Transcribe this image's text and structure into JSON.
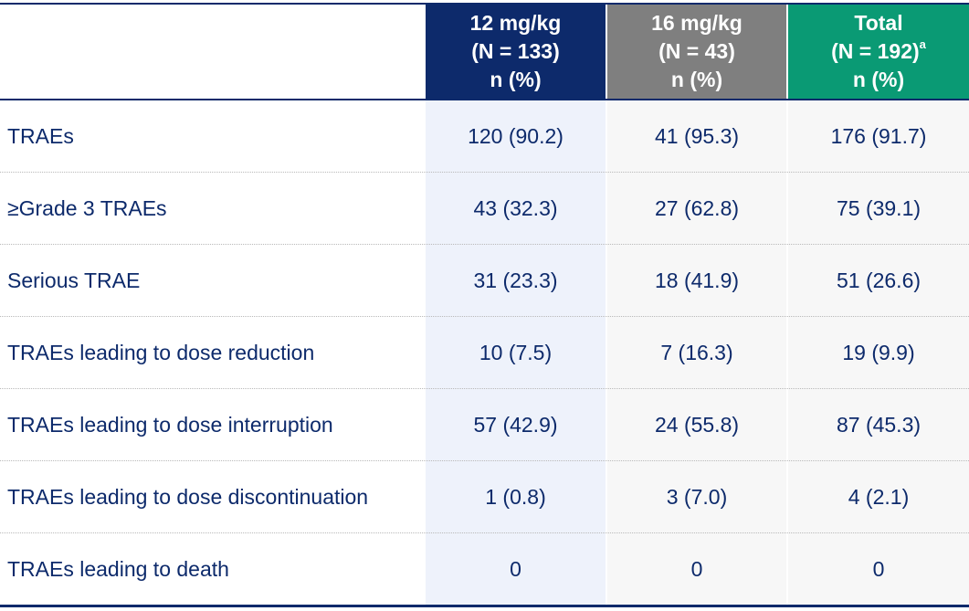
{
  "columns": [
    {
      "dose": "12 mg/kg",
      "n": "(N = 133)",
      "unit": "n (%)",
      "color": "#0d2a6b"
    },
    {
      "dose": "16 mg/kg",
      "n": "(N = 43)",
      "unit": "n (%)",
      "color": "#7f7f7f"
    },
    {
      "dose": "Total",
      "n": "(N = 192)",
      "footnote": "a",
      "unit": "n (%)",
      "color": "#0a9a74"
    }
  ],
  "rows": [
    {
      "label": "TRAEs",
      "v12": "120 (90.2)",
      "v16": "41 (95.3)",
      "total": "176 (91.7)"
    },
    {
      "label": "≥Grade 3 TRAEs",
      "v12": "43 (32.3)",
      "v16": "27 (62.8)",
      "total": "75 (39.1)"
    },
    {
      "label": "Serious TRAE",
      "v12": "31 (23.3)",
      "v16": "18 (41.9)",
      "total": "51 (26.6)"
    },
    {
      "label": "TRAEs leading to dose reduction",
      "v12": "10 (7.5)",
      "v16": "7 (16.3)",
      "total": "19 (9.9)"
    },
    {
      "label": "TRAEs leading to dose interruption",
      "v12": "57 (42.9)",
      "v16": "24 (55.8)",
      "total": "87 (45.3)"
    },
    {
      "label": "TRAEs leading to dose discontinuation",
      "v12": "1 (0.8)",
      "v16": "3 (7.0)",
      "total": "4 (2.1)"
    },
    {
      "label": "TRAEs leading to death",
      "v12": "0",
      "v16": "0",
      "total": "0"
    }
  ]
}
